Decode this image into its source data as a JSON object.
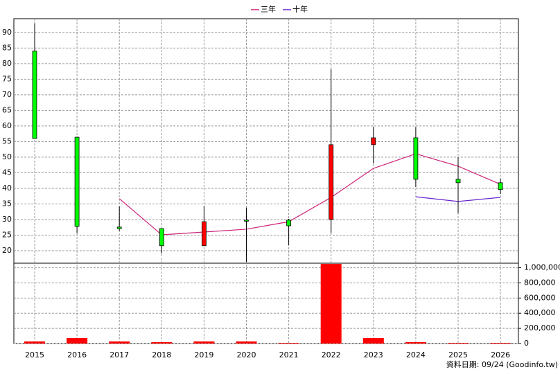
{
  "chart_data": {
    "type": "candlestick",
    "categories": [
      "2015",
      "2016",
      "2017",
      "2018",
      "2019",
      "2020",
      "2021",
      "2022",
      "2023",
      "2024",
      "2025",
      "2026"
    ],
    "open": [
      84,
      56.4,
      27.6,
      27.1,
      21.6,
      29.8,
      29.8,
      30,
      54,
      56.2,
      42.9,
      41.8
    ],
    "high": [
      92.9,
      56.5,
      34.2,
      27.1,
      34.4,
      33.8,
      30.2,
      78.2,
      59.6,
      59.6,
      50,
      43.1
    ],
    "low": [
      56,
      25.6,
      26.4,
      19.1,
      21.6,
      16.4,
      21.8,
      25.6,
      48,
      40.4,
      32,
      38.2
    ],
    "close": [
      56,
      27.8,
      27.1,
      21.6,
      29.3,
      29.6,
      28,
      54,
      56.2,
      42.9,
      41.8,
      39.6
    ],
    "up_color": "#ff0000",
    "down_color": "#00ff00",
    "ylim": [
      16,
      94.4
    ],
    "yticks": [
      20,
      25,
      30,
      35,
      40,
      45,
      50,
      55,
      60,
      65,
      70,
      75,
      80,
      85,
      90
    ],
    "grid": true,
    "series": [
      {
        "name": "三年",
        "color": "#cc2277",
        "values": [
          null,
          null,
          36.7,
          25.1,
          26,
          26.9,
          29.3,
          37.1,
          46.4,
          51.1,
          47.1,
          41.3
        ]
      },
      {
        "name": "十年",
        "color": "#6622cc",
        "values": [
          null,
          null,
          null,
          null,
          null,
          null,
          null,
          null,
          null,
          37.3,
          35.8,
          37.1
        ]
      }
    ],
    "volume": {
      "color": "#ff0000",
      "values": [
        27000,
        73000,
        27000,
        18000,
        27000,
        27000,
        9000,
        1050000,
        73000,
        18000,
        9000,
        9000
      ],
      "ylim": [
        0,
        1060000
      ],
      "yticks": [
        0,
        {
          "value": 200000,
          "label": "200,000"
        },
        {
          "value": 400000,
          "label": "400,000"
        },
        {
          "value": 600000,
          "label": "600,000"
        },
        {
          "value": 800000,
          "label": "800,000"
        },
        {
          "value": 1000000,
          "label": "1,000,000"
        }
      ]
    },
    "footer": "資料日期: 09/24  (Goodinfo.tw)"
  }
}
